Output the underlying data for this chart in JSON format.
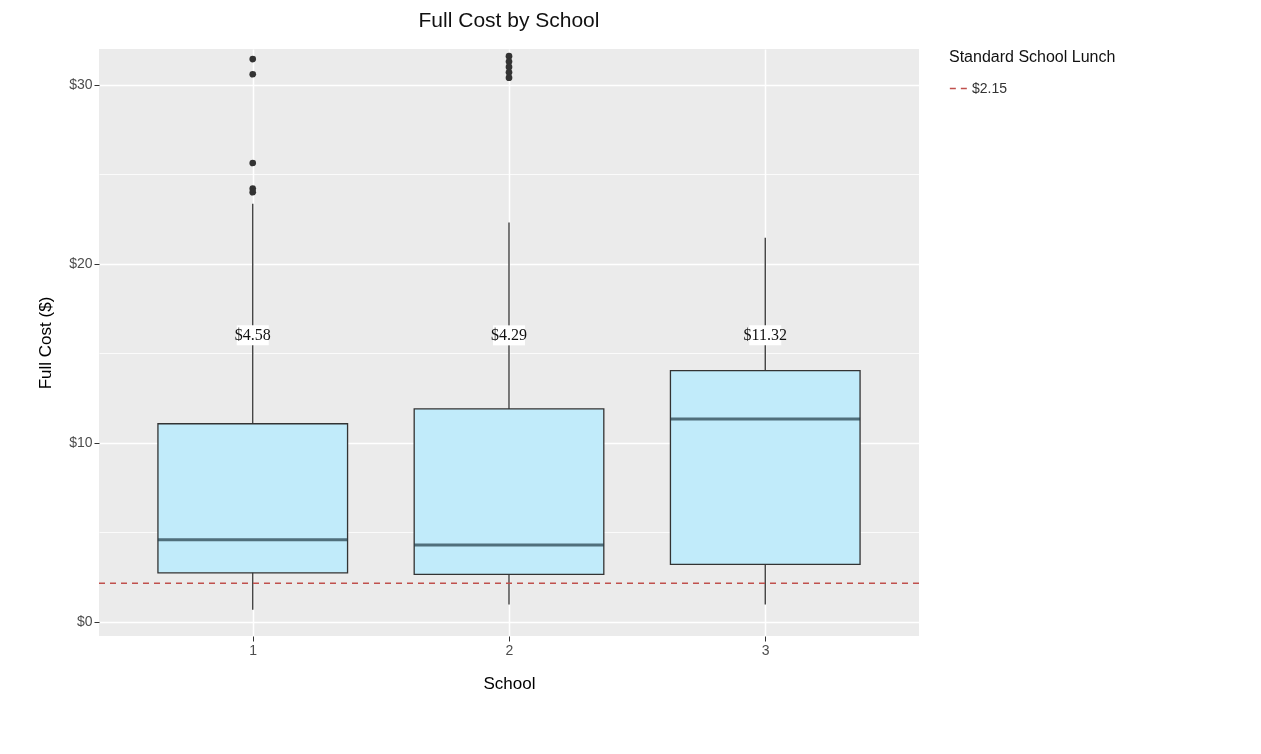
{
  "chart_data": {
    "type": "box",
    "title": "Full Cost by School",
    "xlabel": "School",
    "ylabel": "Full Cost ($)",
    "legend_title": "Standard School Lunch",
    "categories": [
      "1",
      "2",
      "3"
    ],
    "boxes": [
      {
        "low": 0.67,
        "q1": 2.73,
        "median": 4.58,
        "q3": 11.06,
        "high": 23.35,
        "outliers": [
          31.44,
          30.59,
          25.63,
          24.2,
          24.0
        ]
      },
      {
        "low": 0.96,
        "q1": 2.64,
        "median": 4.29,
        "q3": 11.89,
        "high": 22.3,
        "outliers": [
          31.6,
          31.3,
          31.0,
          30.7,
          30.4
        ]
      },
      {
        "low": 0.96,
        "q1": 3.2,
        "median": 11.32,
        "q3": 14.03,
        "high": 21.45
      }
    ],
    "color": "#c1ebfa",
    "ylim": [
      -0.8,
      32
    ],
    "yticks": [
      {
        "value": 0,
        "label": "$0"
      },
      {
        "value": 5,
        "label": null
      },
      {
        "value": 10,
        "label": "$10"
      },
      {
        "value": 15,
        "label": null
      },
      {
        "value": 20,
        "label": "$20"
      },
      {
        "value": 25,
        "label": null
      },
      {
        "value": 30,
        "label": "$30"
      }
    ],
    "ref_lines": [
      {
        "axis": "y",
        "value": 2.15,
        "label": "$2.15",
        "color": "#c0504d",
        "line_style": "dashed"
      }
    ],
    "annotations": [
      {
        "text": "$4.58",
        "x": "1",
        "y": 16
      },
      {
        "text": "$4.29",
        "x": "2",
        "y": 16
      },
      {
        "text": "$11.32",
        "x": "3",
        "y": 16
      }
    ],
    "grid": true,
    "legend": "right"
  }
}
